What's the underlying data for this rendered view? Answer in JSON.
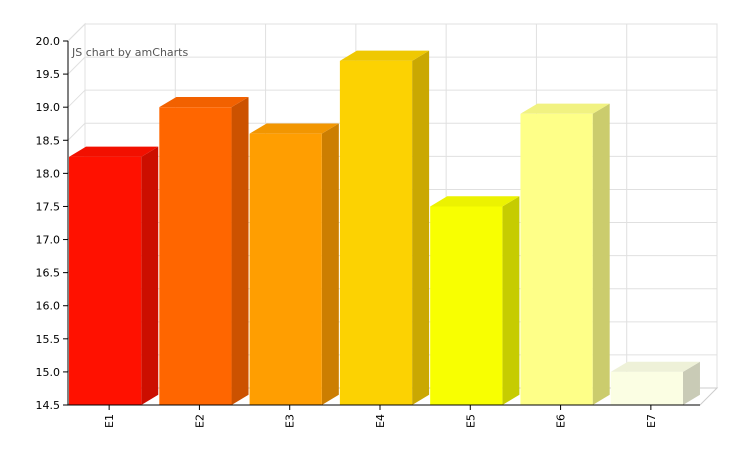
{
  "credit_text": "JS chart by amCharts",
  "chart_data": {
    "type": "bar",
    "title": "",
    "xlabel": "",
    "ylabel": "",
    "categories": [
      "E1",
      "E2",
      "E3",
      "E4",
      "E5",
      "E6",
      "E7"
    ],
    "values": [
      18.25,
      19.0,
      18.6,
      19.7,
      17.5,
      18.9,
      15.0
    ],
    "colors": [
      "#FF1100",
      "#FF6600",
      "#FF9E01",
      "#FCD202",
      "#F8FF01",
      "#FEFF88",
      "#FBFEE3"
    ],
    "ylim": [
      14.5,
      20.0
    ],
    "yticks": [
      "20.0",
      "19.5",
      "19.0",
      "18.5",
      "18.0",
      "17.5",
      "17.0",
      "16.5",
      "16.0",
      "15.5",
      "15.0",
      "14.5"
    ],
    "grid": true,
    "legend": "none",
    "style": "3d-column"
  }
}
